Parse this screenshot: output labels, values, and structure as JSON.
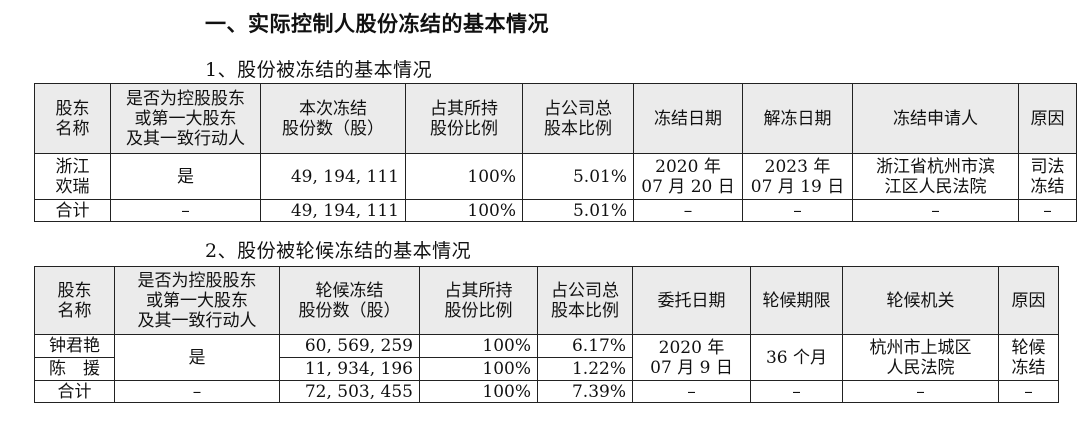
{
  "heading": "一、实际控制人股份冻结的基本情况",
  "section1": {
    "title": "1、股份被冻结的基本情况",
    "headers": [
      "股东\n名称",
      "是否为控股股东\n或第一大股东\n及其一致行动人",
      "本次冻结\n股份数（股）",
      "占其所持\n股份比例",
      "占公司总\n股本比例",
      "冻结日期",
      "解冻日期",
      "冻结申请人",
      "原因"
    ],
    "row": [
      "浙江\n欢瑞",
      "是",
      "49, 194, 111",
      "100%",
      "5.01%",
      "2020 年\n07 月 20 日",
      "2023 年\n07 月 19 日",
      "浙江省杭州市滨\n江区人民法院",
      "司法\n冻结"
    ],
    "total": [
      "合计",
      "–",
      "49, 194, 111",
      "100%",
      "5.01%",
      "–",
      "–",
      "–",
      "–"
    ]
  },
  "section2": {
    "title": "2、股份被轮候冻结的基本情况",
    "headers": [
      "股东\n名称",
      "是否为控股股东\n或第一大股东\n及其一致行动人",
      "轮候冻结\n股份数（股）",
      "占其所持\n股份比例",
      "占公司总\n股本比例",
      "委托日期",
      "轮候期限",
      "轮候机关",
      "原因"
    ],
    "rows": [
      [
        "钟君艳",
        "60, 569, 259",
        "100%",
        "6.17%"
      ],
      [
        "陈　援",
        "11, 934, 196",
        "100%",
        "1.22%"
      ]
    ],
    "shared": {
      "controlling": "是",
      "date": "2020 年\n07 月 9 日",
      "period": "36 个月",
      "authority": "杭州市上城区\n人民法院",
      "reason": "轮候\n冻结"
    },
    "total": [
      "合计",
      "–",
      "72, 503, 455",
      "100%",
      "7.39%",
      "–",
      "–",
      "–",
      "–"
    ]
  }
}
